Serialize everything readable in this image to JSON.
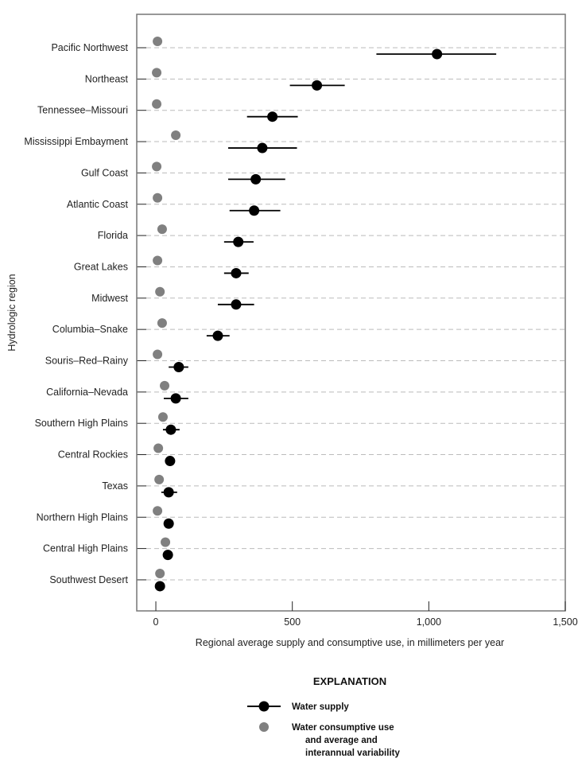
{
  "chart_data": {
    "type": "scatter",
    "xlabel": "Regional average supply and consumptive use, in millimeters per year",
    "ylabel": "Hydrologic region",
    "xlim": [
      -70,
      1500
    ],
    "xticks": [
      0,
      500,
      1000,
      1500
    ],
    "xtick_labels": [
      "0",
      "500",
      "1,000",
      "1,500"
    ],
    "grid": "horizontal dashed",
    "categories": [
      "Pacific Northwest",
      "Northeast",
      "Tennessee–Missouri",
      "Mississippi Embayment",
      "Gulf Coast",
      "Atlantic Coast",
      "Florida",
      "Great Lakes",
      "Midwest",
      "Columbia–Snake",
      "Souris–Red–Rainy",
      "California–Nevada",
      "Southern High Plains",
      "Central Rockies",
      "Texas",
      "Northern High Plains",
      "Central High Plains",
      "Southwest Desert"
    ],
    "series": [
      {
        "name": "Water supply",
        "color": "#000000",
        "values": [
          1030,
          590,
          427,
          390,
          366,
          360,
          302,
          294,
          294,
          227,
          84,
          73,
          55,
          52,
          47,
          47,
          44,
          15
        ],
        "low": [
          808,
          491,
          334,
          265,
          265,
          270,
          250,
          250,
          227,
          186,
          47,
          29,
          26,
          null,
          20,
          null,
          null,
          null
        ],
        "high": [
          1247,
          692,
          520,
          517,
          474,
          456,
          358,
          340,
          360,
          270,
          119,
          119,
          87,
          null,
          78,
          null,
          null,
          null
        ]
      },
      {
        "name": "Water consumptive use",
        "color": "#808080",
        "values": [
          6,
          3,
          3,
          73,
          3,
          6,
          23,
          6,
          15,
          23,
          6,
          32,
          26,
          9,
          12,
          6,
          35,
          15
        ]
      }
    ],
    "legend": {
      "title": "EXPLANATION",
      "placement": "bottom",
      "items": [
        "Water supply",
        "Water consumptive use",
        "and average and",
        "interannual variability"
      ]
    }
  }
}
